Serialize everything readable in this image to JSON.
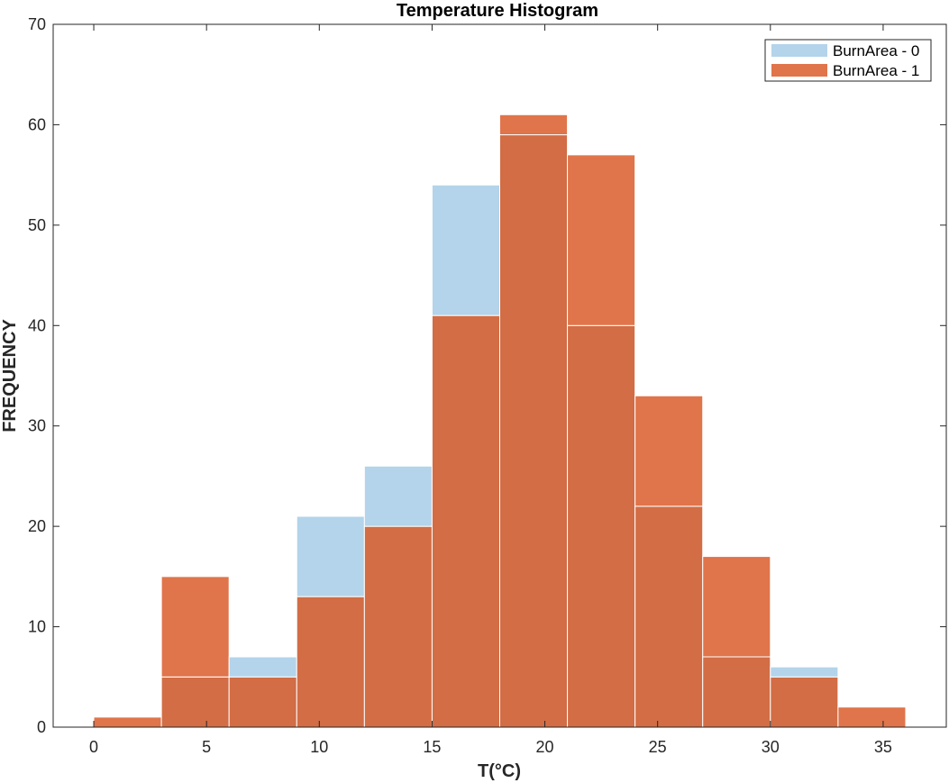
{
  "chart_data": {
    "type": "bar",
    "title": "Temperature Histogram",
    "xlabel": "T(°C)",
    "ylabel": "FREQUENCY",
    "xlim": [
      -1.8,
      37.8
    ],
    "ylim": [
      0,
      70
    ],
    "xticks": [
      0,
      5,
      10,
      15,
      20,
      25,
      30,
      35
    ],
    "yticks": [
      0,
      10,
      20,
      30,
      40,
      50,
      60,
      70
    ],
    "bin_edges": [
      0,
      3,
      6,
      9,
      12,
      15,
      18,
      21,
      24,
      27,
      30,
      33,
      36
    ],
    "grid": false,
    "legend_position": "top-right",
    "series": [
      {
        "name": "BurnArea - 0",
        "color": "#b3d4ea",
        "values": [
          0,
          5,
          7,
          21,
          26,
          54,
          59,
          40,
          22,
          7,
          6,
          0
        ]
      },
      {
        "name": "BurnArea - 1",
        "color": "#e0744a",
        "values": [
          1,
          15,
          5,
          13,
          20,
          41,
          61,
          57,
          33,
          17,
          5,
          2
        ]
      }
    ],
    "overlap_color": "#d26d45"
  }
}
